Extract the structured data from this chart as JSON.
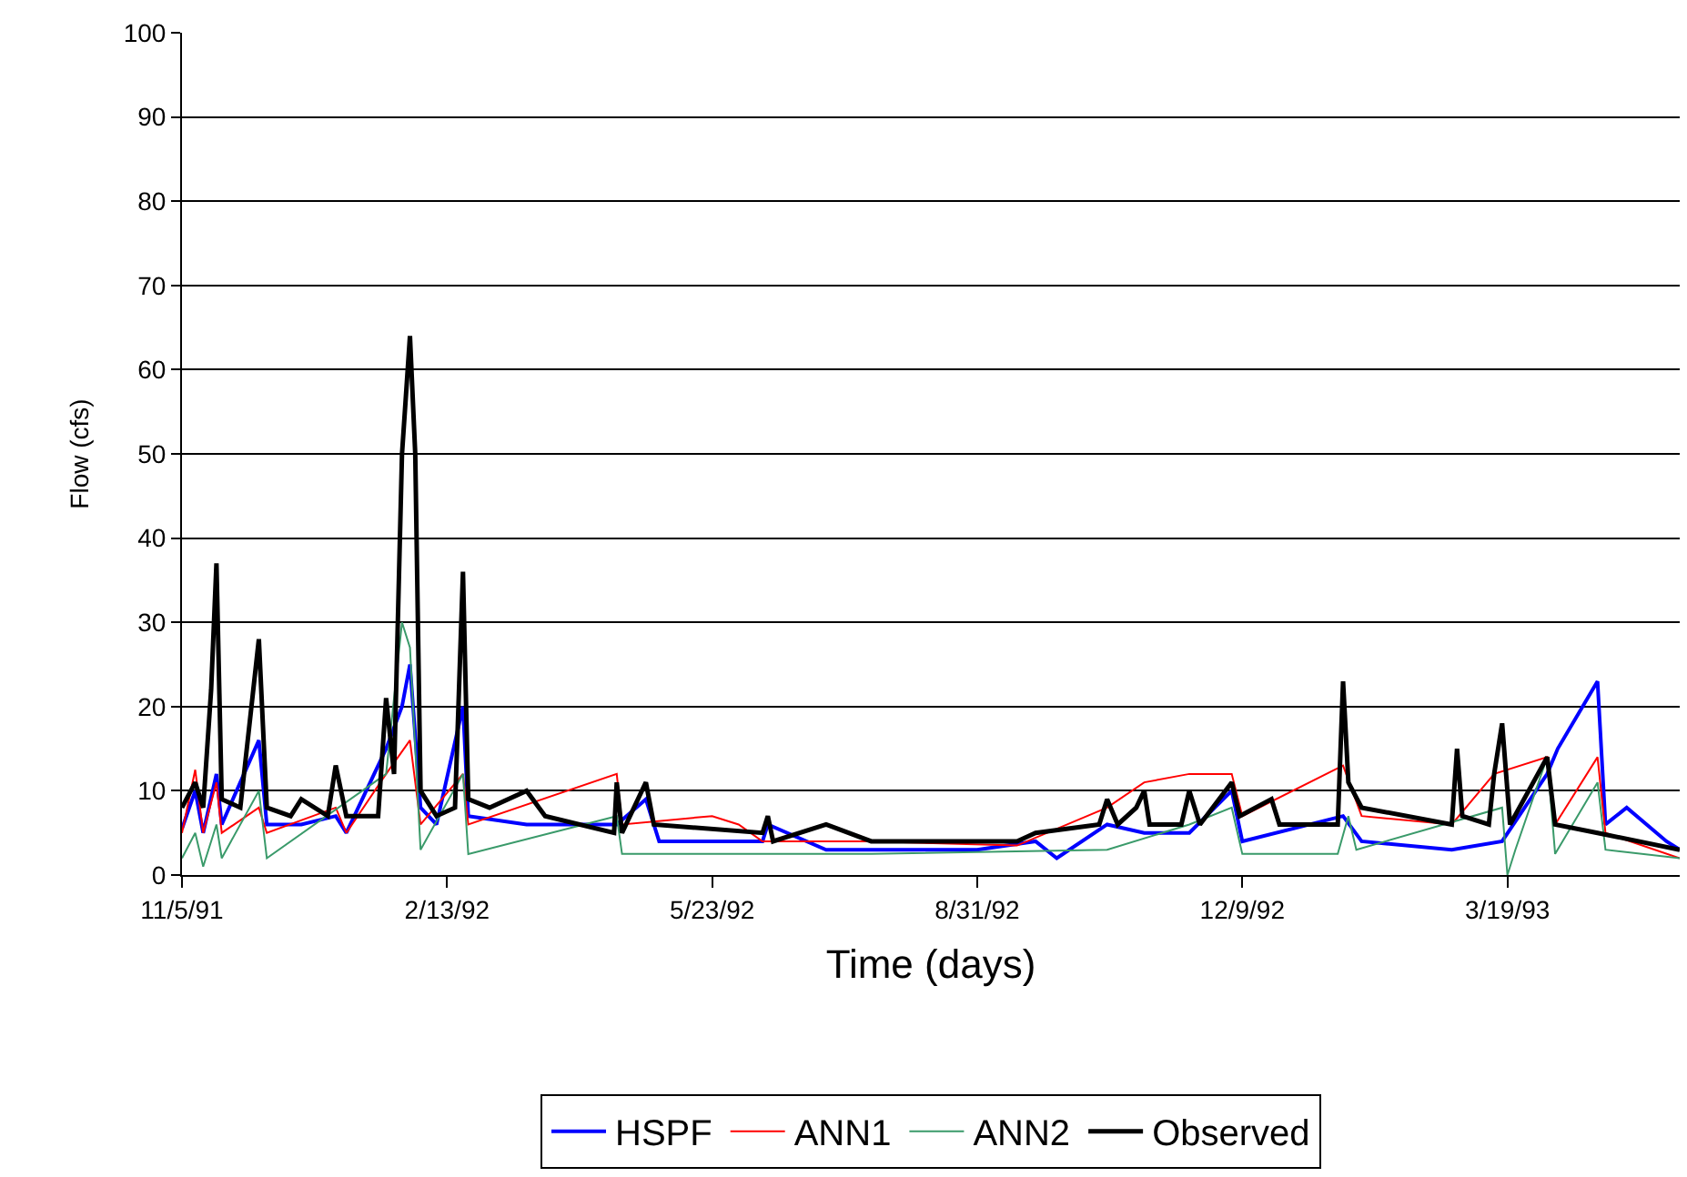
{
  "chart_data": {
    "type": "line",
    "xlabel": "Time (days)",
    "ylabel": "Flow (cfs)",
    "xlim": [
      "1991-11-05",
      "1993-05-23"
    ],
    "xticks": [
      {
        "value": "1991-11-05",
        "label": "11/5/91"
      },
      {
        "value": "1992-02-13",
        "label": "2/13/92"
      },
      {
        "value": "1992-05-23",
        "label": "5/23/92"
      },
      {
        "value": "1992-08-31",
        "label": "8/31/92"
      },
      {
        "value": "1992-12-09",
        "label": "12/9/92"
      },
      {
        "value": "1993-03-19",
        "label": "3/19/93"
      }
    ],
    "ylim": [
      0,
      100
    ],
    "yticks": [
      0,
      10,
      20,
      30,
      40,
      50,
      60,
      70,
      80,
      90,
      100
    ],
    "grid": "y",
    "legend": "bottom",
    "marker": "none",
    "line_style": "solid",
    "series": [
      {
        "name": "HSPF",
        "color": "#0000ff",
        "x": [
          "1991-11-05",
          "1991-11-10",
          "1991-11-13",
          "1991-11-18",
          "1991-11-20",
          "1991-12-04",
          "1991-12-07",
          "1991-12-20",
          "1992-01-02",
          "1992-01-06",
          "1992-01-21",
          "1992-01-27",
          "1992-01-30",
          "1992-02-03",
          "1992-02-09",
          "1992-02-19",
          "1992-02-21",
          "1992-03-14",
          "1992-04-17",
          "1992-04-28",
          "1992-05-03",
          "1992-06-11",
          "1992-06-13",
          "1992-07-05",
          "1992-08-31",
          "1992-09-22",
          "1992-09-30",
          "1992-10-19",
          "1992-11-02",
          "1992-11-19",
          "1992-12-05",
          "1992-12-09",
          "1993-01-16",
          "1993-01-23",
          "1993-02-26",
          "1993-03-17",
          "1993-04-03",
          "1993-04-07",
          "1993-04-22",
          "1993-04-25",
          "1993-05-03",
          "1993-05-18",
          "1993-05-23"
        ],
        "values": [
          5.5,
          10,
          5,
          12,
          6,
          16,
          6,
          6,
          7,
          5,
          15,
          20,
          25,
          8,
          6,
          20,
          7,
          6,
          6,
          9,
          4,
          4,
          6,
          3,
          3,
          4,
          2,
          6,
          5,
          5,
          10,
          4,
          7,
          4,
          3,
          4,
          12,
          15,
          23,
          6,
          8,
          4,
          3
        ]
      },
      {
        "name": "ANN1",
        "color": "#ff0000",
        "x": [
          "1991-11-05",
          "1991-11-10",
          "1991-11-13",
          "1991-11-18",
          "1991-11-20",
          "1991-12-04",
          "1991-12-07",
          "1992-01-02",
          "1992-01-06",
          "1992-01-21",
          "1992-01-30",
          "1992-02-03",
          "1992-02-19",
          "1992-02-21",
          "1992-04-17",
          "1992-04-19",
          "1992-05-23",
          "1992-06-02",
          "1992-06-11",
          "1992-07-22",
          "1992-09-15",
          "1992-10-19",
          "1992-11-02",
          "1992-11-19",
          "1992-12-05",
          "1992-12-09",
          "1993-01-16",
          "1993-01-23",
          "1993-02-26",
          "1993-03-14",
          "1993-04-03",
          "1993-04-06",
          "1993-04-22",
          "1993-04-25",
          "1993-05-23"
        ],
        "values": [
          5,
          12.5,
          5,
          11,
          5,
          8,
          5,
          8,
          5,
          12,
          16,
          6,
          12,
          6,
          12,
          6,
          7,
          6,
          4,
          4,
          3.5,
          8,
          11,
          12,
          12,
          7,
          13,
          7,
          6,
          12,
          14,
          6,
          14,
          5,
          2
        ]
      },
      {
        "name": "ANN2",
        "color": "#3a9a6a",
        "x": [
          "1991-11-05",
          "1991-11-10",
          "1991-11-13",
          "1991-11-18",
          "1991-11-20",
          "1991-12-04",
          "1991-12-07",
          "1992-01-21",
          "1992-01-27",
          "1992-01-30",
          "1992-02-03",
          "1992-02-19",
          "1992-02-21",
          "1992-04-17",
          "1992-04-19",
          "1992-07-22",
          "1992-10-19",
          "1992-11-19",
          "1992-12-05",
          "1992-12-09",
          "1993-01-14",
          "1993-01-18",
          "1993-01-21",
          "1993-03-17",
          "1993-03-19",
          "1993-03-22",
          "1993-04-03",
          "1993-04-06",
          "1993-04-22",
          "1993-04-25",
          "1993-05-23"
        ],
        "values": [
          2,
          5,
          1,
          6,
          2,
          10,
          2,
          12,
          30,
          27,
          3,
          12,
          2.5,
          7,
          2.5,
          2.5,
          3,
          6,
          8,
          2.5,
          2.5,
          7,
          3,
          8,
          0,
          3,
          14,
          2.5,
          11,
          3,
          2
        ]
      },
      {
        "name": "Observed",
        "color": "#000000",
        "x": [
          "1991-11-05",
          "1991-11-10",
          "1991-11-13",
          "1991-11-16",
          "1991-11-18",
          "1991-11-20",
          "1991-11-27",
          "1991-12-04",
          "1991-12-07",
          "1991-12-16",
          "1991-12-20",
          "1991-12-30",
          "1992-01-02",
          "1992-01-06",
          "1992-01-18",
          "1992-01-21",
          "1992-01-24",
          "1992-01-27",
          "1992-01-30",
          "1992-02-01",
          "1992-02-03",
          "1992-02-09",
          "1992-02-16",
          "1992-02-19",
          "1992-02-21",
          "1992-02-29",
          "1992-03-14",
          "1992-03-21",
          "1992-04-16",
          "1992-04-17",
          "1992-04-19",
          "1992-04-28",
          "1992-05-01",
          "1992-06-11",
          "1992-06-13",
          "1992-06-15",
          "1992-07-05",
          "1992-07-22",
          "1992-08-05",
          "1992-09-15",
          "1992-09-22",
          "1992-10-16",
          "1992-10-19",
          "1992-10-23",
          "1992-10-30",
          "1992-11-02",
          "1992-11-04",
          "1992-11-09",
          "1992-11-16",
          "1992-11-19",
          "1992-11-23",
          "1992-12-05",
          "1992-12-08",
          "1992-12-20",
          "1992-12-23",
          "1993-01-14",
          "1993-01-16",
          "1993-01-18",
          "1993-01-23",
          "1993-02-26",
          "1993-02-28",
          "1993-03-02",
          "1993-03-12",
          "1993-03-14",
          "1993-03-17",
          "1993-03-20",
          "1993-04-03",
          "1993-04-06",
          "1993-04-22",
          "1993-05-23"
        ],
        "values": [
          8,
          11,
          8,
          22,
          37,
          9,
          8,
          28,
          8,
          7,
          9,
          7,
          13,
          7,
          7,
          21,
          12,
          50,
          64,
          50,
          10,
          7,
          8,
          36,
          9,
          8,
          10,
          7,
          5,
          11,
          5,
          11,
          6,
          5,
          7,
          4,
          6,
          4,
          4,
          4,
          5,
          6,
          9,
          6,
          8,
          10,
          6,
          6,
          6,
          10,
          6,
          11,
          7,
          9,
          6,
          6,
          23,
          11,
          8,
          6,
          15,
          7,
          6,
          12,
          18,
          6,
          14,
          6,
          5,
          3
        ]
      }
    ]
  }
}
